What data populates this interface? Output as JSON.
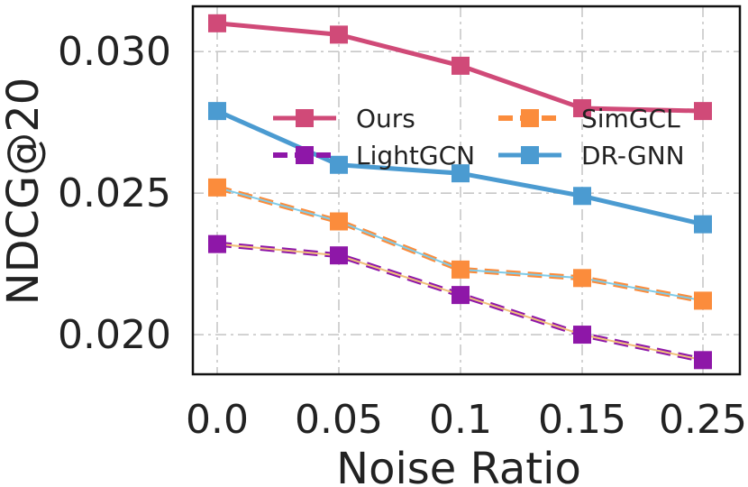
{
  "chart_data": {
    "type": "line",
    "title": "",
    "xlabel": "Noise Ratio",
    "ylabel": "NDCG@20",
    "categories": [
      "0.0",
      "0.05",
      "0.1",
      "0.15",
      "0.25"
    ],
    "ylim": [
      0.0186,
      0.0316
    ],
    "yticks": [
      0.02,
      0.025,
      0.03
    ],
    "ytick_labels": [
      "0.020",
      "0.025",
      "0.030"
    ],
    "grid": true,
    "legend_position": "upper-center",
    "series": [
      {
        "name": "Ours",
        "values": [
          0.031,
          0.0306,
          0.0295,
          0.028,
          0.0279
        ],
        "color": "#d04a78",
        "style": "solid",
        "marker": "square"
      },
      {
        "name": "SimGCL",
        "values": [
          0.0252,
          0.024,
          0.0223,
          0.022,
          0.0212
        ],
        "color": "#fb8c3c",
        "style": "dashed",
        "marker": "square",
        "inner_color": "#7fcbe8"
      },
      {
        "name": "LightGCN",
        "values": [
          0.0232,
          0.0228,
          0.0214,
          0.02,
          0.0191
        ],
        "color": "#8e17a8",
        "style": "dashed",
        "marker": "square",
        "inner_color": "#f1c07a"
      },
      {
        "name": "DR-GNN",
        "values": [
          0.0279,
          0.026,
          0.0257,
          0.0249,
          0.0239
        ],
        "color": "#4b9bd1",
        "style": "solid",
        "marker": "square"
      }
    ]
  }
}
